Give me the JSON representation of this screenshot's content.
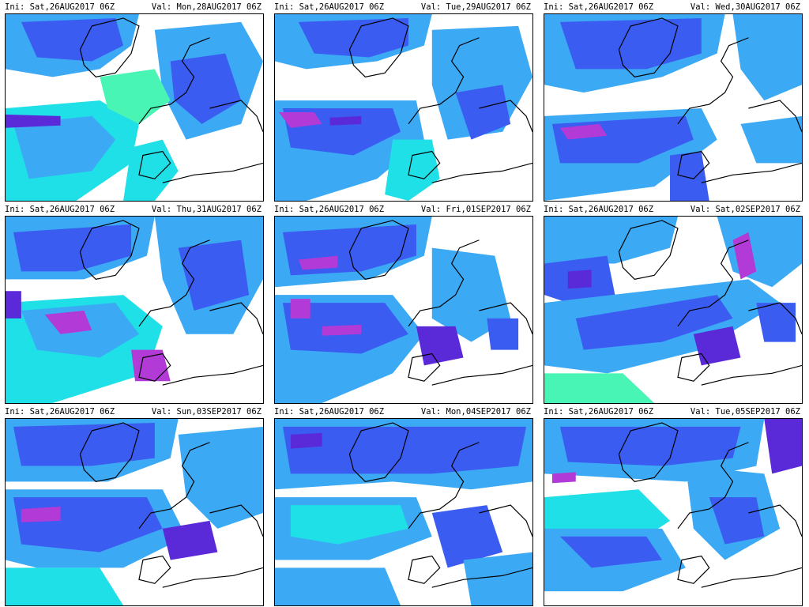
{
  "panels": [
    {
      "ini": "Ini: Sat,26AUG2017 06Z",
      "val": "Val: Mon,28AUG2017 06Z"
    },
    {
      "ini": "Ini: Sat,26AUG2017 06Z",
      "val": "Val: Tue,29AUG2017 06Z"
    },
    {
      "ini": "Ini: Sat,26AUG2017 06Z",
      "val": "Val: Wed,30AUG2017 06Z"
    },
    {
      "ini": "Ini: Sat,26AUG2017 06Z",
      "val": "Val: Thu,31AUG2017 06Z"
    },
    {
      "ini": "Ini: Sat,26AUG2017 06Z",
      "val": "Val: Fri,01SEP2017 06Z"
    },
    {
      "ini": "Ini: Sat,26AUG2017 06Z",
      "val": "Val: Sat,02SEP2017 06Z"
    },
    {
      "ini": "Ini: Sat,26AUG2017 06Z",
      "val": "Val: Sun,03SEP2017 06Z"
    },
    {
      "ini": "Ini: Sat,26AUG2017 06Z",
      "val": "Val: Mon,04SEP2017 06Z"
    },
    {
      "ini": "Ini: Sat,26AUG2017 06Z",
      "val": "Val: Tue,05SEP2017 06Z"
    }
  ],
  "colors": {
    "cyan": "#1ee0e6",
    "lightblue": "#3ca9f5",
    "blue": "#3b5cf0",
    "indigo": "#5b2ad8",
    "magenta": "#b23ad6",
    "green": "#49f5b4",
    "coast": "#000000"
  }
}
